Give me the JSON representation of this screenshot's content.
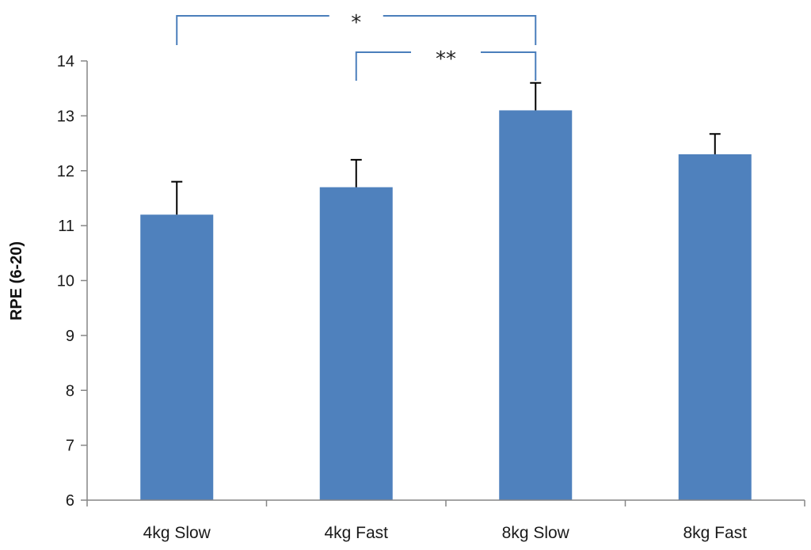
{
  "chart_data": {
    "type": "bar",
    "title": "",
    "xlabel": "",
    "ylabel": "RPE (6-20)",
    "categories": [
      "4kg Slow",
      "4kg Fast",
      "8kg Slow",
      "8kg Fast"
    ],
    "values": [
      11.2,
      11.7,
      13.1,
      12.3
    ],
    "error_plus": [
      0.6,
      0.5,
      0.5,
      0.37
    ],
    "ylim": [
      6,
      14
    ],
    "yticks": [
      6,
      7,
      8,
      9,
      10,
      11,
      12,
      13,
      14
    ],
    "grid": false,
    "colors": {
      "bar": "#4f81bd",
      "bracket": "#4a7ebb",
      "error_bar": "#000000",
      "axis": "#868686"
    },
    "significance": [
      {
        "from": 0,
        "to": 2,
        "label": "*"
      },
      {
        "from": 1,
        "to": 2,
        "label": "**"
      }
    ]
  }
}
